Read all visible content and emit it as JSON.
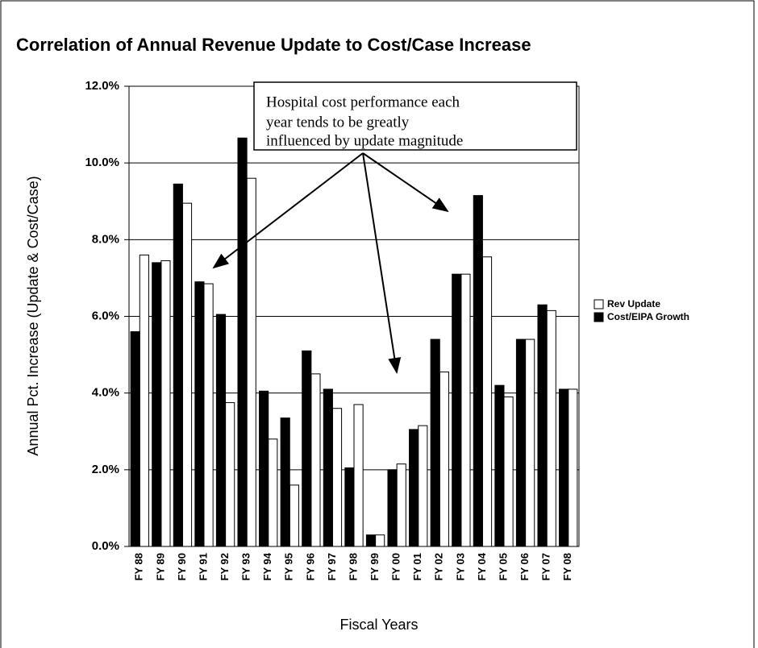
{
  "chart_data": {
    "type": "bar",
    "title": "Correlation of Annual Revenue Update to Cost/Case Increase",
    "y_label": "Annual Pct. Increase (Update & Cost/Case)",
    "x_label": "Fiscal Years",
    "annotations": [
      "Hospital cost performance each",
      "year tends to be greatly",
      "influenced by update magnitude"
    ],
    "categories": [
      "FY 88",
      "FY 89",
      "FY 90",
      "FY 91",
      "FY 92",
      "FY 93",
      "FY 94",
      "FY 95",
      "FY 96",
      "FY 97",
      "FY 98",
      "FY 99",
      "FY 00",
      "FY 01",
      "FY 02",
      "FY 03",
      "FY 04",
      "FY 05",
      "FY 06",
      "FY 07",
      "FY 08"
    ],
    "series": [
      {
        "name": "Rev Update",
        "color": "#ffffff",
        "values": [
          7.6,
          7.45,
          8.95,
          6.85,
          3.75,
          9.6,
          2.8,
          1.6,
          4.5,
          3.6,
          3.7,
          0.3,
          2.15,
          3.15,
          4.55,
          7.1,
          7.55,
          3.9,
          5.4,
          6.15,
          4.1
        ]
      },
      {
        "name": "Cost/EIPA Growth",
        "color": "#000000",
        "values": [
          5.6,
          7.4,
          9.45,
          6.9,
          6.05,
          10.65,
          4.05,
          3.35,
          5.1,
          4.1,
          2.05,
          0.3,
          2.0,
          3.05,
          5.4,
          7.1,
          9.15,
          4.2,
          5.4,
          6.3,
          4.1
        ]
      }
    ],
    "ylim": [
      0,
      12
    ],
    "yticks": [
      {
        "value": 0,
        "label": "0.0%"
      },
      {
        "value": 2,
        "label": "2.0%"
      },
      {
        "value": 4,
        "label": "4.0%"
      },
      {
        "value": 6,
        "label": "6.0%"
      },
      {
        "value": 8,
        "label": "8.0%"
      },
      {
        "value": 10,
        "label": "10.0%"
      },
      {
        "value": 12,
        "label": "12.0%"
      }
    ],
    "grid": true,
    "legend": "right"
  }
}
